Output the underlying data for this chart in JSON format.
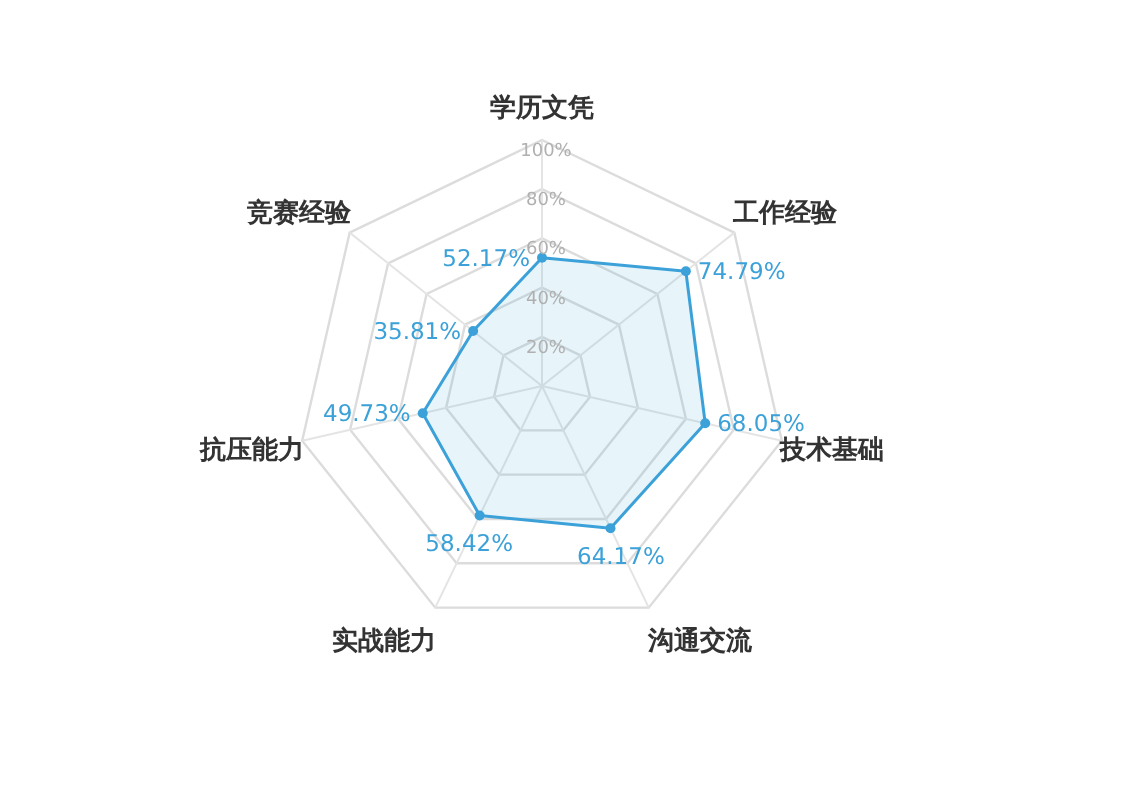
{
  "chart_data": {
    "type": "radar",
    "categories": [
      "学历文凭",
      "工作经验",
      "技术基础",
      "沟通交流",
      "实战能力",
      "抗压能力",
      "竞赛经验"
    ],
    "series": [
      {
        "color": "#3ba1d8",
        "values": [
          52.17,
          74.79,
          68.05,
          64.17,
          58.42,
          49.73,
          35.81
        ],
        "value_labels": [
          "52.17%",
          "74.79%",
          "68.05%",
          "64.17%",
          "58.42%",
          "49.73%",
          "35.81%"
        ]
      }
    ],
    "ylim": [
      0,
      100
    ],
    "yticks": [
      {
        "value": 20,
        "label": "20%"
      },
      {
        "value": 40,
        "label": "40%"
      },
      {
        "value": 60,
        "label": "60%"
      },
      {
        "value": 80,
        "label": "80%"
      },
      {
        "value": 100,
        "label": "100%"
      }
    ],
    "grid": true,
    "marker": "circle"
  }
}
